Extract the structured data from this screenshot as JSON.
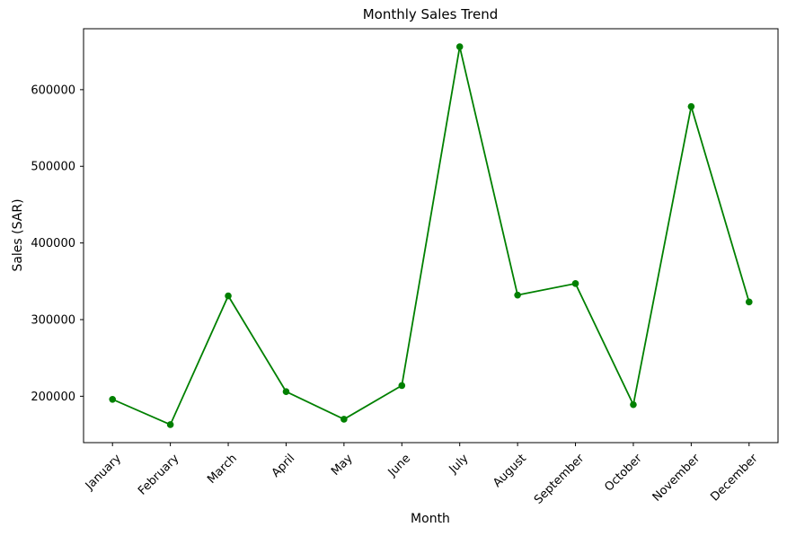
{
  "chart_data": {
    "type": "line",
    "title": "Monthly Sales Trend",
    "xlabel": "Month",
    "ylabel": "Sales (SAR)",
    "categories": [
      "January",
      "February",
      "March",
      "April",
      "May",
      "June",
      "July",
      "August",
      "September",
      "October",
      "November",
      "December"
    ],
    "series": [
      {
        "name": "Monthly Sales",
        "values": [
          196000,
          163000,
          331000,
          206000,
          170000,
          214000,
          656000,
          332000,
          347000,
          189000,
          578000,
          323000
        ],
        "color": "#008000",
        "marker": "circle"
      }
    ],
    "yticks": [
      200000,
      300000,
      400000,
      500000,
      600000
    ],
    "ylim": [
      139500,
      679500
    ],
    "grid": false,
    "legend_position": "none",
    "x_tick_rotation_deg": 45,
    "background_color": "#ffffff",
    "text_color": "#000000"
  }
}
